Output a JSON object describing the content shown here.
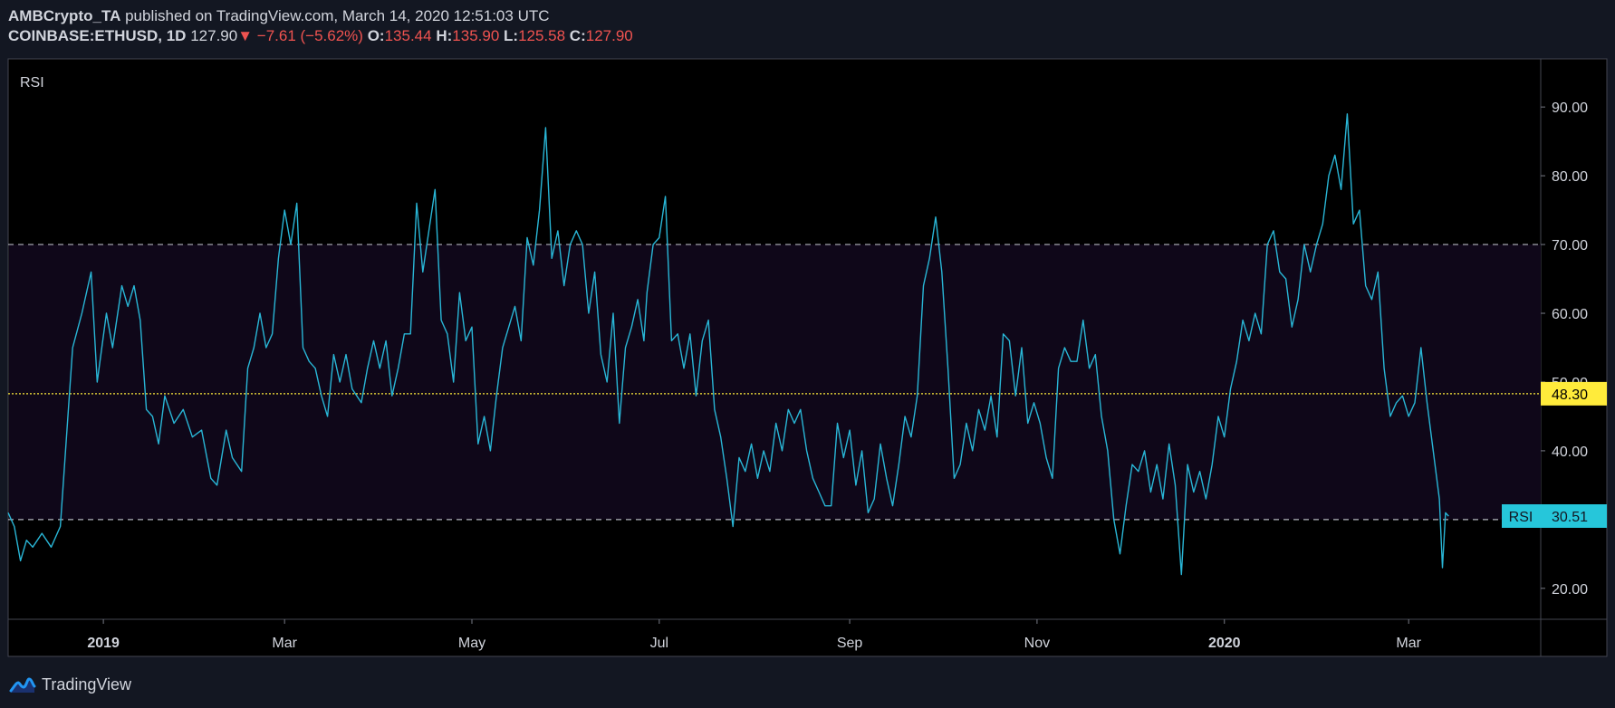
{
  "header": {
    "author": "AMBCrypto_TA",
    "published_text": "published on TradingView.com, March 14, 2020 12:51:03 UTC",
    "symbol": "COINBASE:ETHUSD, 1D",
    "price": "127.90",
    "change_icon": "down-triangle-icon",
    "change": "−7.61 (−5.62%)",
    "o_label": "O:",
    "o_value": "135.44",
    "h_label": "H:",
    "h_value": "135.90",
    "l_label": "L:",
    "l_value": "125.58",
    "c_label": "C:",
    "c_value": "127.90"
  },
  "footer": {
    "brand": "TradingView",
    "logo_icon": "tradingview-logo-icon"
  },
  "colors": {
    "background": "#000000",
    "frame": "#131722",
    "line": "#29b6d6",
    "band": "#0f0719",
    "level": "#b2b5be",
    "ma": "#ffeb3b",
    "current_label": "#26c6da"
  },
  "chart_data": {
    "type": "line",
    "pane_title": "RSI",
    "ylim": [
      15.5,
      97
    ],
    "y_ticks": [
      20,
      30,
      40,
      50,
      60,
      70,
      80,
      90
    ],
    "y_tick_labels": [
      "20.00",
      "30.00",
      "40.00",
      "50.00",
      "60.00",
      "70.00",
      "80.00",
      "90.00"
    ],
    "x_ticks": [
      {
        "date": "2019-01-01",
        "label": "2019",
        "bold": true
      },
      {
        "date": "2019-03-01",
        "label": "Mar",
        "bold": false
      },
      {
        "date": "2019-05-01",
        "label": "May",
        "bold": false
      },
      {
        "date": "2019-07-01",
        "label": "Jul",
        "bold": false
      },
      {
        "date": "2019-09-01",
        "label": "Sep",
        "bold": false
      },
      {
        "date": "2019-11-01",
        "label": "Nov",
        "bold": false
      },
      {
        "date": "2020-01-01",
        "label": "2020",
        "bold": true
      },
      {
        "date": "2020-03-01",
        "label": "Mar",
        "bold": false
      }
    ],
    "xlim": [
      "2018-12-01",
      "2020-04-13"
    ],
    "upper_band": 70,
    "lower_band": 30,
    "ma_value": 48.3,
    "ma_label": "48.30",
    "current_value": 30.51,
    "current_label": "30.51",
    "current_tag": "RSI",
    "series": [
      {
        "values": [
          [
            "2018-12-01",
            31
          ],
          [
            "2018-12-03",
            29
          ],
          [
            "2018-12-05",
            24
          ],
          [
            "2018-12-07",
            27
          ],
          [
            "2018-12-09",
            26
          ],
          [
            "2018-12-12",
            28
          ],
          [
            "2018-12-15",
            26
          ],
          [
            "2018-12-18",
            29
          ],
          [
            "2018-12-20",
            42
          ],
          [
            "2018-12-22",
            55
          ],
          [
            "2018-12-25",
            60
          ],
          [
            "2018-12-28",
            66
          ],
          [
            "2018-12-30",
            50
          ],
          [
            "2019-01-02",
            60
          ],
          [
            "2019-01-04",
            55
          ],
          [
            "2019-01-07",
            64
          ],
          [
            "2019-01-09",
            61
          ],
          [
            "2019-01-11",
            64
          ],
          [
            "2019-01-13",
            59
          ],
          [
            "2019-01-15",
            46
          ],
          [
            "2019-01-17",
            45
          ],
          [
            "2019-01-19",
            41
          ],
          [
            "2019-01-21",
            48
          ],
          [
            "2019-01-24",
            44
          ],
          [
            "2019-01-27",
            46
          ],
          [
            "2019-01-30",
            42
          ],
          [
            "2019-02-02",
            43
          ],
          [
            "2019-02-05",
            36
          ],
          [
            "2019-02-07",
            35
          ],
          [
            "2019-02-10",
            43
          ],
          [
            "2019-02-12",
            39
          ],
          [
            "2019-02-15",
            37
          ],
          [
            "2019-02-17",
            52
          ],
          [
            "2019-02-19",
            55
          ],
          [
            "2019-02-21",
            60
          ],
          [
            "2019-02-23",
            55
          ],
          [
            "2019-02-25",
            57
          ],
          [
            "2019-02-27",
            68
          ],
          [
            "2019-03-01",
            75
          ],
          [
            "2019-03-03",
            70
          ],
          [
            "2019-03-05",
            76
          ],
          [
            "2019-03-07",
            55
          ],
          [
            "2019-03-09",
            53
          ],
          [
            "2019-03-11",
            52
          ],
          [
            "2019-03-13",
            48
          ],
          [
            "2019-03-15",
            45
          ],
          [
            "2019-03-17",
            54
          ],
          [
            "2019-03-19",
            50
          ],
          [
            "2019-03-21",
            54
          ],
          [
            "2019-03-23",
            49
          ],
          [
            "2019-03-26",
            47
          ],
          [
            "2019-03-28",
            52
          ],
          [
            "2019-03-30",
            56
          ],
          [
            "2019-04-01",
            52
          ],
          [
            "2019-04-03",
            56
          ],
          [
            "2019-04-05",
            48
          ],
          [
            "2019-04-07",
            52
          ],
          [
            "2019-04-09",
            57
          ],
          [
            "2019-04-11",
            57
          ],
          [
            "2019-04-13",
            76
          ],
          [
            "2019-04-15",
            66
          ],
          [
            "2019-04-17",
            72
          ],
          [
            "2019-04-19",
            78
          ],
          [
            "2019-04-21",
            59
          ],
          [
            "2019-04-23",
            57
          ],
          [
            "2019-04-25",
            50
          ],
          [
            "2019-04-27",
            63
          ],
          [
            "2019-04-29",
            56
          ],
          [
            "2019-05-01",
            58
          ],
          [
            "2019-05-03",
            41
          ],
          [
            "2019-05-05",
            45
          ],
          [
            "2019-05-07",
            40
          ],
          [
            "2019-05-09",
            48
          ],
          [
            "2019-05-11",
            55
          ],
          [
            "2019-05-13",
            58
          ],
          [
            "2019-05-15",
            61
          ],
          [
            "2019-05-17",
            56
          ],
          [
            "2019-05-19",
            71
          ],
          [
            "2019-05-21",
            67
          ],
          [
            "2019-05-23",
            75
          ],
          [
            "2019-05-25",
            87
          ],
          [
            "2019-05-27",
            68
          ],
          [
            "2019-05-29",
            72
          ],
          [
            "2019-05-31",
            64
          ],
          [
            "2019-06-02",
            70
          ],
          [
            "2019-06-04",
            72
          ],
          [
            "2019-06-06",
            70
          ],
          [
            "2019-06-08",
            60
          ],
          [
            "2019-06-10",
            66
          ],
          [
            "2019-06-12",
            54
          ],
          [
            "2019-06-14",
            50
          ],
          [
            "2019-06-16",
            60
          ],
          [
            "2019-06-18",
            44
          ],
          [
            "2019-06-20",
            55
          ],
          [
            "2019-06-22",
            58
          ],
          [
            "2019-06-24",
            62
          ],
          [
            "2019-06-26",
            56
          ],
          [
            "2019-06-27",
            63
          ],
          [
            "2019-06-29",
            70
          ],
          [
            "2019-07-01",
            71
          ],
          [
            "2019-07-03",
            77
          ],
          [
            "2019-07-05",
            56
          ],
          [
            "2019-07-07",
            57
          ],
          [
            "2019-07-09",
            52
          ],
          [
            "2019-07-11",
            57
          ],
          [
            "2019-07-13",
            48
          ],
          [
            "2019-07-15",
            56
          ],
          [
            "2019-07-17",
            59
          ],
          [
            "2019-07-19",
            46
          ],
          [
            "2019-07-21",
            42
          ],
          [
            "2019-07-23",
            36
          ],
          [
            "2019-07-25",
            29
          ],
          [
            "2019-07-27",
            39
          ],
          [
            "2019-07-29",
            37
          ],
          [
            "2019-07-31",
            41
          ],
          [
            "2019-08-02",
            36
          ],
          [
            "2019-08-04",
            40
          ],
          [
            "2019-08-06",
            37
          ],
          [
            "2019-08-08",
            44
          ],
          [
            "2019-08-10",
            40
          ],
          [
            "2019-08-12",
            46
          ],
          [
            "2019-08-14",
            44
          ],
          [
            "2019-08-16",
            46
          ],
          [
            "2019-08-18",
            40
          ],
          [
            "2019-08-20",
            36
          ],
          [
            "2019-08-22",
            34
          ],
          [
            "2019-08-24",
            32
          ],
          [
            "2019-08-26",
            32
          ],
          [
            "2019-08-28",
            44
          ],
          [
            "2019-08-30",
            39
          ],
          [
            "2019-09-01",
            43
          ],
          [
            "2019-09-03",
            35
          ],
          [
            "2019-09-05",
            40
          ],
          [
            "2019-09-07",
            31
          ],
          [
            "2019-09-09",
            33
          ],
          [
            "2019-09-11",
            41
          ],
          [
            "2019-09-13",
            36
          ],
          [
            "2019-09-15",
            32
          ],
          [
            "2019-09-17",
            38
          ],
          [
            "2019-09-19",
            45
          ],
          [
            "2019-09-21",
            42
          ],
          [
            "2019-09-23",
            48
          ],
          [
            "2019-09-25",
            64
          ],
          [
            "2019-09-27",
            68
          ],
          [
            "2019-09-29",
            74
          ],
          [
            "2019-10-01",
            66
          ],
          [
            "2019-10-03",
            52
          ],
          [
            "2019-10-05",
            36
          ],
          [
            "2019-10-07",
            38
          ],
          [
            "2019-10-09",
            44
          ],
          [
            "2019-10-11",
            40
          ],
          [
            "2019-10-13",
            46
          ],
          [
            "2019-10-15",
            43
          ],
          [
            "2019-10-17",
            48
          ],
          [
            "2019-10-19",
            42
          ],
          [
            "2019-10-21",
            57
          ],
          [
            "2019-10-23",
            56
          ],
          [
            "2019-10-25",
            48
          ],
          [
            "2019-10-27",
            55
          ],
          [
            "2019-10-29",
            44
          ],
          [
            "2019-10-31",
            47
          ],
          [
            "2019-11-02",
            44
          ],
          [
            "2019-11-04",
            39
          ],
          [
            "2019-11-06",
            36
          ],
          [
            "2019-11-08",
            52
          ],
          [
            "2019-11-10",
            55
          ],
          [
            "2019-11-12",
            53
          ],
          [
            "2019-11-14",
            53
          ],
          [
            "2019-11-16",
            59
          ],
          [
            "2019-11-18",
            52
          ],
          [
            "2019-11-20",
            54
          ],
          [
            "2019-11-22",
            45
          ],
          [
            "2019-11-24",
            40
          ],
          [
            "2019-11-26",
            30
          ],
          [
            "2019-11-28",
            25
          ],
          [
            "2019-11-30",
            32
          ],
          [
            "2019-12-02",
            38
          ],
          [
            "2019-12-04",
            37
          ],
          [
            "2019-12-06",
            40
          ],
          [
            "2019-12-08",
            34
          ],
          [
            "2019-12-10",
            38
          ],
          [
            "2019-12-12",
            33
          ],
          [
            "2019-12-14",
            41
          ],
          [
            "2019-12-16",
            35
          ],
          [
            "2019-12-18",
            22
          ],
          [
            "2019-12-20",
            38
          ],
          [
            "2019-12-22",
            34
          ],
          [
            "2019-12-24",
            37
          ],
          [
            "2019-12-26",
            33
          ],
          [
            "2019-12-28",
            38
          ],
          [
            "2019-12-30",
            45
          ],
          [
            "2020-01-01",
            42
          ],
          [
            "2020-01-03",
            49
          ],
          [
            "2020-01-05",
            53
          ],
          [
            "2020-01-07",
            59
          ],
          [
            "2020-01-09",
            56
          ],
          [
            "2020-01-11",
            60
          ],
          [
            "2020-01-13",
            57
          ],
          [
            "2020-01-15",
            70
          ],
          [
            "2020-01-17",
            72
          ],
          [
            "2020-01-19",
            66
          ],
          [
            "2020-01-21",
            65
          ],
          [
            "2020-01-23",
            58
          ],
          [
            "2020-01-25",
            62
          ],
          [
            "2020-01-27",
            70
          ],
          [
            "2020-01-29",
            66
          ],
          [
            "2020-01-31",
            70
          ],
          [
            "2020-02-02",
            73
          ],
          [
            "2020-02-04",
            80
          ],
          [
            "2020-02-06",
            83
          ],
          [
            "2020-02-08",
            78
          ],
          [
            "2020-02-10",
            89
          ],
          [
            "2020-02-12",
            73
          ],
          [
            "2020-02-14",
            75
          ],
          [
            "2020-02-16",
            64
          ],
          [
            "2020-02-18",
            62
          ],
          [
            "2020-02-20",
            66
          ],
          [
            "2020-02-22",
            52
          ],
          [
            "2020-02-24",
            45
          ],
          [
            "2020-02-26",
            47
          ],
          [
            "2020-02-28",
            48
          ],
          [
            "2020-03-01",
            45
          ],
          [
            "2020-03-03",
            47
          ],
          [
            "2020-03-05",
            55
          ],
          [
            "2020-03-07",
            47
          ],
          [
            "2020-03-09",
            40
          ],
          [
            "2020-03-11",
            33
          ],
          [
            "2020-03-12",
            23
          ],
          [
            "2020-03-13",
            31
          ],
          [
            "2020-03-14",
            30.5
          ]
        ]
      }
    ]
  }
}
